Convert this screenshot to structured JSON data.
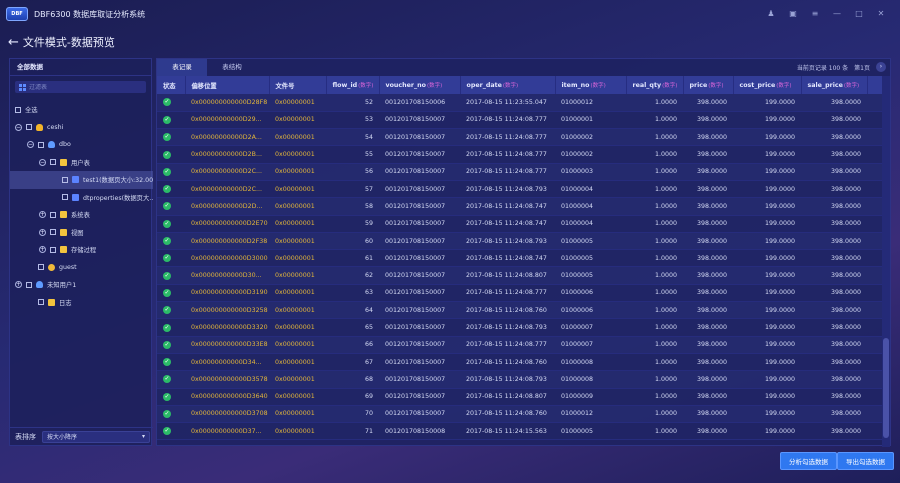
{
  "app": {
    "logo": "DBF",
    "title": "DBF6300 数据库取证分析系统"
  },
  "window_controls": [
    "skin-icon",
    "settings-icon",
    "menu-icon",
    "minimize-icon",
    "maximize-icon",
    "close-icon"
  ],
  "page": {
    "title": "文件模式-数据预览"
  },
  "sidebar": {
    "header": "全部数据",
    "search_placeholder": "过滤表",
    "tree": [
      {
        "label": "全选",
        "indent": 0,
        "expander": "",
        "icon": ""
      },
      {
        "label": "ceshi",
        "indent": 0,
        "expander": "−",
        "icon": "db"
      },
      {
        "label": "dbo",
        "indent": 1,
        "expander": "−",
        "icon": "user"
      },
      {
        "label": "用户表",
        "indent": 2,
        "expander": "−",
        "icon": "folder"
      },
      {
        "label": "test1(数据页大小:32.00...",
        "indent": 3,
        "expander": "",
        "icon": "table",
        "selected": true
      },
      {
        "label": "dtproperties(数据页大...",
        "indent": 3,
        "expander": "",
        "icon": "table"
      },
      {
        "label": "系统表",
        "indent": 2,
        "expander": "+",
        "icon": "folder"
      },
      {
        "label": "视图",
        "indent": 2,
        "expander": "+",
        "icon": "folder"
      },
      {
        "label": "存储过程",
        "indent": 2,
        "expander": "+",
        "icon": "folder"
      },
      {
        "label": "guest",
        "indent": 1,
        "expander": "",
        "icon": "group"
      },
      {
        "label": "未知用户1",
        "indent": 0,
        "expander": "+",
        "icon": "user"
      },
      {
        "label": "日志",
        "indent": 1,
        "expander": "",
        "icon": "folder"
      }
    ],
    "sort_label": "表排序",
    "sort_value": "按大小降序"
  },
  "main": {
    "tabs": [
      "表记录",
      "表结构"
    ],
    "active_tab": 0,
    "pager_info": "当前页记录 100 条",
    "page_no": "第1页",
    "columns": [
      {
        "label": "状态",
        "hint": ""
      },
      {
        "label": "偏移位置",
        "hint": ""
      },
      {
        "label": "文件号",
        "hint": ""
      },
      {
        "label": "flow_id",
        "hint": "(数字)"
      },
      {
        "label": "voucher_no",
        "hint": "(数字)"
      },
      {
        "label": "oper_date",
        "hint": "(数字)"
      },
      {
        "label": "item_no",
        "hint": "(数字)"
      },
      {
        "label": "real_qty",
        "hint": "(数字)"
      },
      {
        "label": "price",
        "hint": "(数字)"
      },
      {
        "label": "cost_price",
        "hint": "(数字)"
      },
      {
        "label": "sale_price",
        "hint": "(数字)"
      },
      {
        "label": "",
        "hint": ""
      }
    ],
    "rows": [
      [
        "0x000000000000D28F8",
        "0x00000001",
        "52",
        "001201708150006",
        "2017-08-15 11:23:55.047",
        "01000012",
        "1.0000",
        "398.0000",
        "199.0000",
        "398.0000"
      ],
      [
        "0x00000000000D29...",
        "0x00000001",
        "53",
        "001201708150007",
        "2017-08-15 11:24:08.777",
        "01000001",
        "1.0000",
        "398.0000",
        "199.0000",
        "398.0000"
      ],
      [
        "0x00000000000D2A...",
        "0x00000001",
        "54",
        "001201708150007",
        "2017-08-15 11:24:08.777",
        "01000002",
        "1.0000",
        "398.0000",
        "199.0000",
        "398.0000"
      ],
      [
        "0x00000000000D2B...",
        "0x00000001",
        "55",
        "001201708150007",
        "2017-08-15 11:24:08.777",
        "01000002",
        "1.0000",
        "398.0000",
        "199.0000",
        "398.0000"
      ],
      [
        "0x00000000000D2C...",
        "0x00000001",
        "56",
        "001201708150007",
        "2017-08-15 11:24:08.777",
        "01000003",
        "1.0000",
        "398.0000",
        "199.0000",
        "398.0000"
      ],
      [
        "0x00000000000D2C...",
        "0x00000001",
        "57",
        "001201708150007",
        "2017-08-15 11:24:08.793",
        "01000004",
        "1.0000",
        "398.0000",
        "199.0000",
        "398.0000"
      ],
      [
        "0x00000000000D2D...",
        "0x00000001",
        "58",
        "001201708150007",
        "2017-08-15 11:24:08.747",
        "01000004",
        "1.0000",
        "398.0000",
        "199.0000",
        "398.0000"
      ],
      [
        "0x000000000000D2E70",
        "0x00000001",
        "59",
        "001201708150007",
        "2017-08-15 11:24:08.747",
        "01000004",
        "1.0000",
        "398.0000",
        "199.0000",
        "398.0000"
      ],
      [
        "0x000000000000D2F38",
        "0x00000001",
        "60",
        "001201708150007",
        "2017-08-15 11:24:08.793",
        "01000005",
        "1.0000",
        "398.0000",
        "199.0000",
        "398.0000"
      ],
      [
        "0x000000000000D3000",
        "0x00000001",
        "61",
        "001201708150007",
        "2017-08-15 11:24:08.747",
        "01000005",
        "1.0000",
        "398.0000",
        "199.0000",
        "398.0000"
      ],
      [
        "0x00000000000D30...",
        "0x00000001",
        "62",
        "001201708150007",
        "2017-08-15 11:24:08.807",
        "01000005",
        "1.0000",
        "398.0000",
        "199.0000",
        "398.0000"
      ],
      [
        "0x000000000000D3190",
        "0x00000001",
        "63",
        "001201708150007",
        "2017-08-15 11:24:08.777",
        "01000006",
        "1.0000",
        "398.0000",
        "199.0000",
        "398.0000"
      ],
      [
        "0x000000000000D3258",
        "0x00000001",
        "64",
        "001201708150007",
        "2017-08-15 11:24:08.760",
        "01000006",
        "1.0000",
        "398.0000",
        "199.0000",
        "398.0000"
      ],
      [
        "0x000000000000D3320",
        "0x00000001",
        "65",
        "001201708150007",
        "2017-08-15 11:24:08.793",
        "01000007",
        "1.0000",
        "398.0000",
        "199.0000",
        "398.0000"
      ],
      [
        "0x000000000000D33E8",
        "0x00000001",
        "66",
        "001201708150007",
        "2017-08-15 11:24:08.777",
        "01000007",
        "1.0000",
        "398.0000",
        "199.0000",
        "398.0000"
      ],
      [
        "0x00000000000D34...",
        "0x00000001",
        "67",
        "001201708150007",
        "2017-08-15 11:24:08.760",
        "01000008",
        "1.0000",
        "398.0000",
        "199.0000",
        "398.0000"
      ],
      [
        "0x000000000000D3578",
        "0x00000001",
        "68",
        "001201708150007",
        "2017-08-15 11:24:08.793",
        "01000008",
        "1.0000",
        "398.0000",
        "199.0000",
        "398.0000"
      ],
      [
        "0x000000000000D3640",
        "0x00000001",
        "69",
        "001201708150007",
        "2017-08-15 11:24:08.807",
        "01000009",
        "1.0000",
        "398.0000",
        "199.0000",
        "398.0000"
      ],
      [
        "0x000000000000D3708",
        "0x00000001",
        "70",
        "001201708150007",
        "2017-08-15 11:24:08.760",
        "01000012",
        "1.0000",
        "398.0000",
        "199.0000",
        "398.0000"
      ],
      [
        "0x00000000000D37...",
        "0x00000001",
        "71",
        "001201708150008",
        "2017-08-15 11:24:15.563",
        "01000005",
        "1.0000",
        "398.0000",
        "199.0000",
        "398.0000"
      ]
    ]
  },
  "buttons": {
    "analyze": "分析勾选数据",
    "export": "导出勾选数据"
  },
  "colors": {
    "accent": "#2f78f0",
    "hex_text": "#e4b73a",
    "ok": "#2bbb68",
    "hint": "#d865d8"
  }
}
